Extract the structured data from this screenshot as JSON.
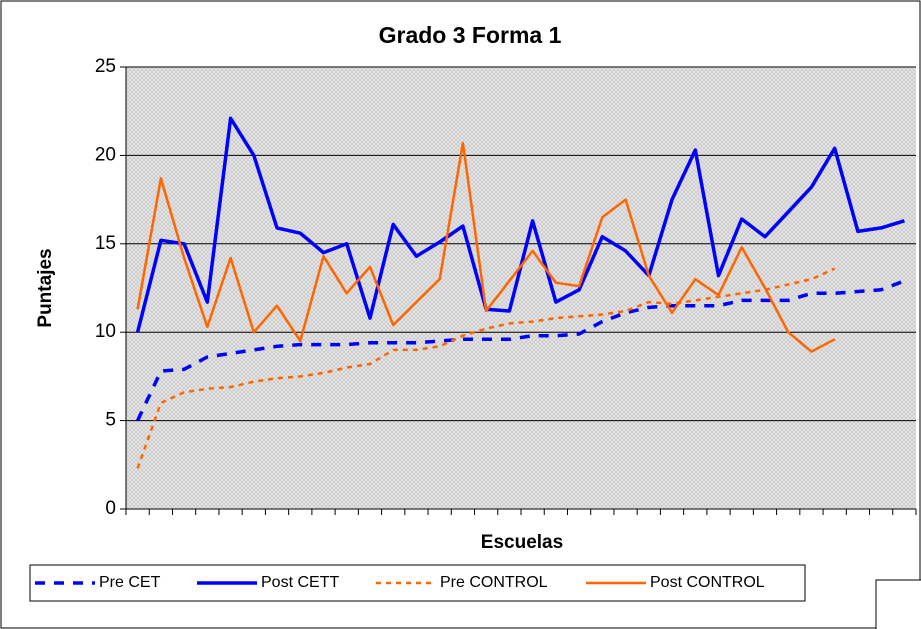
{
  "chart_data": {
    "type": "line",
    "title": "Grado 3 Forma 1",
    "x_label": "Escuelas",
    "y_label": "Puntajes",
    "categories": [
      null,
      null,
      null,
      null,
      null,
      null,
      null,
      null,
      null,
      null,
      null,
      null,
      null,
      null,
      null,
      null,
      null,
      null,
      null,
      null,
      null,
      null,
      null,
      null,
      null,
      null,
      null,
      null,
      null,
      null,
      null,
      null,
      null,
      null
    ],
    "ylim": [
      0,
      25
    ],
    "yticks": [
      0,
      5,
      10,
      15,
      20,
      25
    ],
    "grid": true,
    "legend": "bottom",
    "series": [
      {
        "name": "Pre CET",
        "color": "#0000ff",
        "dashed": true,
        "values": [
          5,
          7.8,
          7.9,
          8.6,
          8.8,
          9,
          9.2,
          9.3,
          9.3,
          9.3,
          9.4,
          9.4,
          9.4,
          9.5,
          9.6,
          9.6,
          9.6,
          9.8,
          9.8,
          9.9,
          10.6,
          11.1,
          11.4,
          11.5,
          11.5,
          11.5,
          11.8,
          11.8,
          11.8,
          12.2,
          12.2,
          12.3,
          12.4,
          12.9
        ]
      },
      {
        "name": "Post CETT",
        "color": "#0000ff",
        "dashed": false,
        "values": [
          10,
          15.2,
          15,
          11.7,
          22.1,
          20,
          15.9,
          15.6,
          14.5,
          15,
          10.8,
          16.1,
          14.3,
          15.1,
          16,
          11.3,
          11.2,
          16.3,
          11.7,
          12.4,
          15.4,
          14.6,
          13.2,
          17.5,
          20.3,
          13.2,
          16.4,
          15.4,
          16.8,
          18.2,
          20.4,
          15.7,
          15.9,
          16.3
        ]
      },
      {
        "name": "Pre CONTROL",
        "color": "#ff6600",
        "dashed": true,
        "values": [
          2.3,
          6,
          6.6,
          6.8,
          6.9,
          7.2,
          7.4,
          7.5,
          7.7,
          8,
          8.2,
          9,
          9,
          9.2,
          9.8,
          10.2,
          10.5,
          10.6,
          10.8,
          10.9,
          11,
          11.2,
          11.7,
          11.6,
          11.8,
          12,
          12.2,
          12.4,
          12.7,
          13,
          13.6,
          null,
          null,
          null
        ]
      },
      {
        "name": "Post CONTROL",
        "color": "#ff6600",
        "dashed": false,
        "values": [
          11.3,
          18.7,
          14.2,
          10.3,
          14.2,
          10,
          11.5,
          9.5,
          14.3,
          12.2,
          13.7,
          10.4,
          11.7,
          13,
          20.7,
          11.2,
          12.9,
          14.6,
          12.8,
          12.6,
          16.5,
          17.5,
          13.2,
          11.1,
          13,
          12.1,
          14.8,
          12.5,
          10,
          8.9,
          9.6,
          null,
          null,
          null
        ]
      }
    ]
  }
}
